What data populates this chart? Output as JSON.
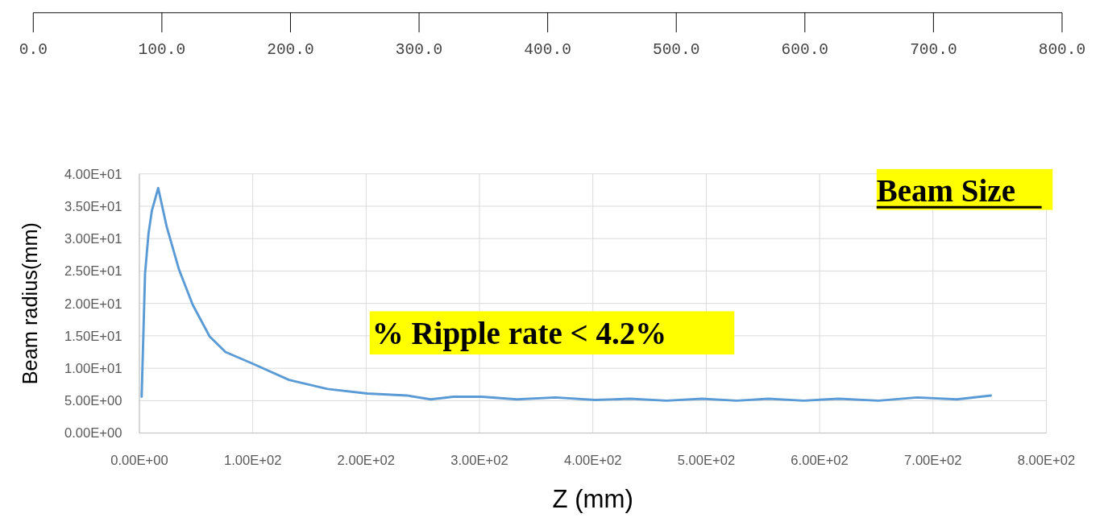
{
  "chart_data": {
    "type": "line",
    "title": "Beam Size",
    "xlabel": "Z (mm)",
    "ylabel": "Beam radius(mm)",
    "annotations": [
      "% Ripple rate < 4.2%"
    ],
    "series": [
      {
        "color": "#5b9bd5",
        "x": [
          2,
          5,
          8,
          11,
          16.6,
          24,
          35,
          47,
          62,
          76,
          100,
          132,
          166,
          201,
          236,
          257,
          277,
          302,
          333,
          367,
          402,
          433,
          465,
          496,
          527,
          555,
          586,
          617,
          652,
          686,
          721,
          751
        ],
        "values": [
          5.6,
          24.6,
          30.7,
          34.3,
          37.8,
          31.9,
          25.2,
          19.8,
          14.9,
          12.5,
          10.7,
          8.2,
          6.8,
          6.1,
          5.8,
          5.2,
          5.6,
          5.6,
          5.2,
          5.5,
          5.1,
          5.3,
          5.0,
          5.3,
          5.0,
          5.3,
          5.0,
          5.3,
          5.0,
          5.5,
          5.2,
          5.8
        ]
      }
    ],
    "xlim": [
      0,
      800
    ],
    "xticks": [
      {
        "value": 0,
        "label": "0.00E+00"
      },
      {
        "value": 100,
        "label": "1.00E+02"
      },
      {
        "value": 200,
        "label": "2.00E+02"
      },
      {
        "value": 300,
        "label": "3.00E+02"
      },
      {
        "value": 400,
        "label": "4.00E+02"
      },
      {
        "value": 500,
        "label": "5.00E+02"
      },
      {
        "value": 600,
        "label": "6.00E+02"
      },
      {
        "value": 700,
        "label": "7.00E+02"
      },
      {
        "value": 800,
        "label": "8.00E+02"
      }
    ],
    "ylim": [
      0,
      40
    ],
    "yticks": [
      {
        "value": 0,
        "label": "0.00E+00"
      },
      {
        "value": 5,
        "label": "5.00E+00"
      },
      {
        "value": 10,
        "label": "1.00E+01"
      },
      {
        "value": 15,
        "label": "1.50E+01"
      },
      {
        "value": 20,
        "label": "2.00E+01"
      },
      {
        "value": 25,
        "label": "2.50E+01"
      },
      {
        "value": 30,
        "label": "3.00E+01"
      },
      {
        "value": 35,
        "label": "3.50E+01"
      },
      {
        "value": 40,
        "label": "4.00E+01"
      }
    ],
    "x2lim": [
      0,
      800
    ],
    "x2ticks": [
      {
        "value": 0,
        "label": "0.0"
      },
      {
        "value": 100,
        "label": "100.0"
      },
      {
        "value": 200,
        "label": "200.0"
      },
      {
        "value": 300,
        "label": "300.0"
      },
      {
        "value": 400,
        "label": "400.0"
      },
      {
        "value": 500,
        "label": "500.0"
      },
      {
        "value": 600,
        "label": "600.0"
      },
      {
        "value": 700,
        "label": "700.0"
      },
      {
        "value": 800,
        "label": "800.0"
      }
    ],
    "grid": true,
    "marker": "none",
    "line_style": "solid"
  }
}
